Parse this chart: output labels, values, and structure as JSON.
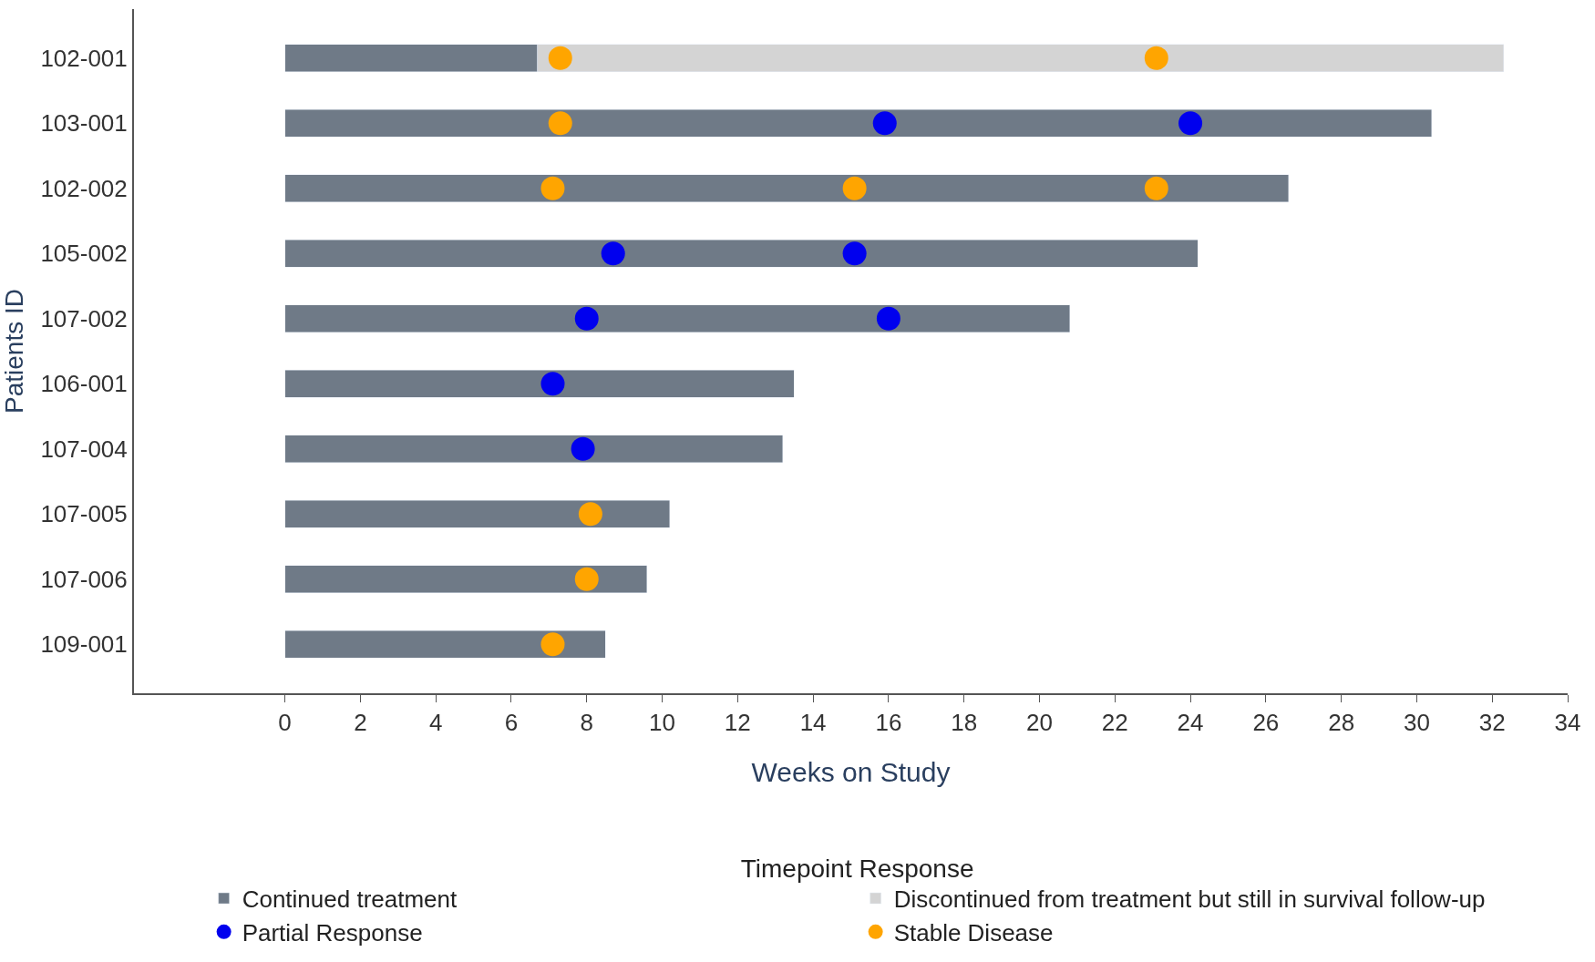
{
  "chart_data": {
    "type": "bar",
    "orientation": "horizontal",
    "stacked": true,
    "xlabel": "Weeks on Study",
    "ylabel": "Patients ID",
    "legend_title": "Timepoint Response",
    "legend": "bottom",
    "categories": [
      "102-001",
      "103-001",
      "102-002",
      "105-002",
      "107-002",
      "106-001",
      "107-004",
      "107-005",
      "107-006",
      "109-001"
    ],
    "xlim": [
      -4,
      34
    ],
    "xticks": [
      0,
      2,
      4,
      6,
      8,
      10,
      12,
      14,
      16,
      18,
      20,
      22,
      24,
      26,
      28,
      30,
      32,
      34
    ],
    "series": [
      {
        "name": "Continued treatment",
        "color": "#6f7a87",
        "values": [
          6.7,
          30.4,
          26.6,
          24.2,
          20.8,
          13.5,
          13.2,
          10.2,
          9.6,
          8.5
        ]
      },
      {
        "name": "Discontinued from treatment but still in survival follow-up",
        "color": "#d4d4d4",
        "values": [
          25.6,
          null,
          null,
          null,
          null,
          null,
          null,
          null,
          null,
          null
        ]
      },
      {
        "name": "Partial Response",
        "type": "scatter",
        "marker": "circle",
        "color": "#0000ee",
        "x": [
          "103-001",
          "103-001",
          "105-002",
          "105-002",
          "107-002",
          "107-002",
          "106-001",
          "107-004"
        ],
        "values": [
          15.9,
          24.0,
          8.7,
          15.1,
          8.0,
          16.0,
          7.1,
          7.9
        ]
      },
      {
        "name": "Stable Disease",
        "type": "scatter",
        "marker": "circle",
        "color": "#ffa500",
        "x": [
          "102-001",
          "102-001",
          "103-001",
          "102-002",
          "102-002",
          "102-002",
          "107-005",
          "107-006",
          "109-001"
        ],
        "values": [
          7.3,
          23.1,
          7.3,
          7.1,
          15.1,
          23.1,
          8.1,
          8.0,
          7.1
        ]
      }
    ]
  }
}
